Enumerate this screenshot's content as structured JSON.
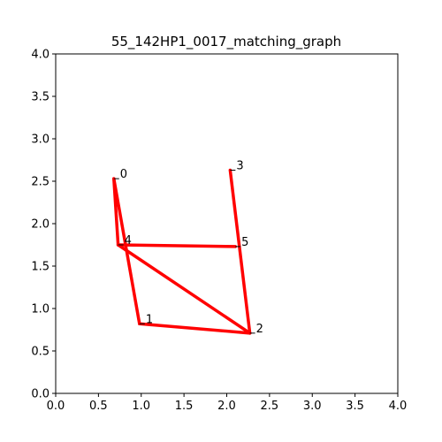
{
  "chart_data": {
    "type": "graph",
    "title": "55_142HP1_0017_matching_graph",
    "xlabel": "",
    "ylabel": "",
    "xlim": [
      0.0,
      4.0
    ],
    "ylim": [
      0.0,
      4.0
    ],
    "grid": false,
    "x_ticks": [
      "0.0",
      "0.5",
      "1.0",
      "1.5",
      "2.0",
      "2.5",
      "3.0",
      "3.5",
      "4.0"
    ],
    "y_ticks": [
      "0.0",
      "0.5",
      "1.0",
      "1.5",
      "2.0",
      "2.5",
      "3.0",
      "3.5",
      "4.0"
    ],
    "edge_color": "#ff0000",
    "nodes": [
      {
        "id": "0",
        "x": 0.68,
        "y": 2.53
      },
      {
        "id": "1",
        "x": 0.98,
        "y": 0.82
      },
      {
        "id": "2",
        "x": 2.27,
        "y": 0.71
      },
      {
        "id": "3",
        "x": 2.04,
        "y": 2.63
      },
      {
        "id": "4",
        "x": 0.73,
        "y": 1.75
      },
      {
        "id": "5",
        "x": 2.1,
        "y": 1.73
      }
    ],
    "edges": [
      [
        "0",
        "1"
      ],
      [
        "0",
        "4"
      ],
      [
        "4",
        "5"
      ],
      [
        "4",
        "2"
      ],
      [
        "1",
        "2"
      ],
      [
        "3",
        "2"
      ]
    ]
  }
}
